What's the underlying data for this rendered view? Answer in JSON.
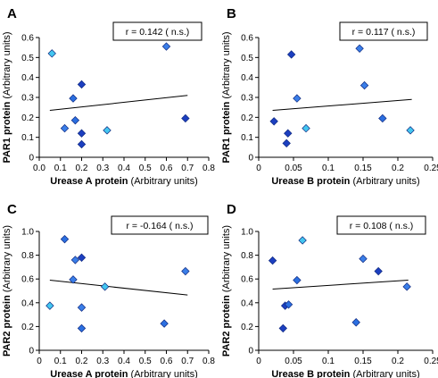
{
  "chart_data": [
    {
      "type": "scatter",
      "panel_label": "A",
      "annotation": "r = 0.142 ( n.s.)",
      "xlabel": "Urease A protein",
      "xlabel_suffix": "(Arbitrary units)",
      "ylabel": "PAR1 protein",
      "ylabel_suffix": "(Arbitrary units)",
      "xlim": [
        0,
        0.8
      ],
      "ylim": [
        0,
        0.6
      ],
      "xticks": [
        "0.0",
        "0.1",
        "0.2",
        "0.3",
        "0.4",
        "0.5",
        "0.6",
        "0.7",
        "0.8"
      ],
      "yticks": [
        "0",
        "0.1",
        "0.2",
        "0.3",
        "0.4",
        "0.5",
        "0.6"
      ],
      "points": [
        {
          "x": 0.06,
          "y": 0.52,
          "c": "#43c6f0"
        },
        {
          "x": 0.12,
          "y": 0.145,
          "c": "#3a7ee8"
        },
        {
          "x": 0.16,
          "y": 0.295,
          "c": "#2b6fe0"
        },
        {
          "x": 0.17,
          "y": 0.185,
          "c": "#2b6fe0"
        },
        {
          "x": 0.2,
          "y": 0.365,
          "c": "#1c3fc0"
        },
        {
          "x": 0.2,
          "y": 0.12,
          "c": "#1c3fc0"
        },
        {
          "x": 0.2,
          "y": 0.065,
          "c": "#1c3fc0"
        },
        {
          "x": 0.32,
          "y": 0.135,
          "c": "#43c6f0"
        },
        {
          "x": 0.6,
          "y": 0.555,
          "c": "#3a7ee8"
        },
        {
          "x": 0.69,
          "y": 0.195,
          "c": "#1c3fc0"
        }
      ],
      "trend": {
        "x": [
          0.05,
          0.7
        ],
        "y": [
          0.235,
          0.31
        ]
      }
    },
    {
      "type": "scatter",
      "panel_label": "B",
      "annotation": "r = 0.117 ( n.s.)",
      "xlabel": "Urease B protein",
      "xlabel_suffix": "(Arbitrary units)",
      "ylabel": "PAR1 protein",
      "ylabel_suffix": "(Arbitrary units)",
      "xlim": [
        0,
        0.25
      ],
      "ylim": [
        0,
        0.6
      ],
      "xticks": [
        "0",
        "0.05",
        "0.1",
        "0.15",
        "0.2",
        "0.25"
      ],
      "yticks": [
        "0",
        "0.1",
        "0.2",
        "0.3",
        "0.4",
        "0.5",
        "0.6"
      ],
      "points": [
        {
          "x": 0.022,
          "y": 0.18,
          "c": "#1c3fc0"
        },
        {
          "x": 0.04,
          "y": 0.07,
          "c": "#1c3fc0"
        },
        {
          "x": 0.042,
          "y": 0.12,
          "c": "#1c3fc0"
        },
        {
          "x": 0.047,
          "y": 0.515,
          "c": "#1c3fc0"
        },
        {
          "x": 0.055,
          "y": 0.295,
          "c": "#3a7ee8"
        },
        {
          "x": 0.068,
          "y": 0.145,
          "c": "#43c6f0"
        },
        {
          "x": 0.145,
          "y": 0.545,
          "c": "#3a7ee8"
        },
        {
          "x": 0.152,
          "y": 0.36,
          "c": "#3a7ee8"
        },
        {
          "x": 0.178,
          "y": 0.195,
          "c": "#2b6fe0"
        },
        {
          "x": 0.218,
          "y": 0.135,
          "c": "#43c6f0"
        }
      ],
      "trend": {
        "x": [
          0.02,
          0.22
        ],
        "y": [
          0.235,
          0.29
        ]
      }
    },
    {
      "type": "scatter",
      "panel_label": "C",
      "annotation": "r = -0.164 ( n.s.)",
      "xlabel": "Urease A protein",
      "xlabel_suffix": "(Arbitrary units)",
      "ylabel": "PAR2 protein",
      "ylabel_suffix": "(Arbitrary units)",
      "xlim": [
        0,
        0.8
      ],
      "ylim": [
        0,
        1.0
      ],
      "xticks": [
        "0",
        "0.1",
        "0.2",
        "0.3",
        "0.4",
        "0.5",
        "0.6",
        "0.7",
        "0.8"
      ],
      "yticks": [
        "0",
        "0.2",
        "0.4",
        "0.6",
        "0.8",
        "1.0"
      ],
      "points": [
        {
          "x": 0.05,
          "y": 0.375,
          "c": "#43c6f0"
        },
        {
          "x": 0.12,
          "y": 0.935,
          "c": "#2b6fe0"
        },
        {
          "x": 0.16,
          "y": 0.595,
          "c": "#3a7ee8"
        },
        {
          "x": 0.17,
          "y": 0.76,
          "c": "#3a7ee8"
        },
        {
          "x": 0.2,
          "y": 0.78,
          "c": "#1c3fc0"
        },
        {
          "x": 0.2,
          "y": 0.36,
          "c": "#3a7ee8"
        },
        {
          "x": 0.2,
          "y": 0.185,
          "c": "#2b6fe0"
        },
        {
          "x": 0.31,
          "y": 0.535,
          "c": "#43c6f0"
        },
        {
          "x": 0.59,
          "y": 0.225,
          "c": "#2b6fe0"
        },
        {
          "x": 0.69,
          "y": 0.665,
          "c": "#3a7ee8"
        }
      ],
      "trend": {
        "x": [
          0.05,
          0.7
        ],
        "y": [
          0.59,
          0.465
        ]
      }
    },
    {
      "type": "scatter",
      "panel_label": "D",
      "annotation": "r = 0.108 ( n.s.)",
      "xlabel": "Urease B protein",
      "xlabel_suffix": "(Arbitrary units)",
      "ylabel": "PAR2 protein",
      "ylabel_suffix": "(Arbitrary units)",
      "xlim": [
        0,
        0.25
      ],
      "ylim": [
        0,
        1.0
      ],
      "xticks": [
        "0",
        "0.05",
        "0.1",
        "0.15",
        "0.2",
        "0.25"
      ],
      "yticks": [
        "0",
        "0.2",
        "0.4",
        "0.6",
        "0.8",
        "1.0"
      ],
      "points": [
        {
          "x": 0.02,
          "y": 0.755,
          "c": "#1c3fc0"
        },
        {
          "x": 0.035,
          "y": 0.185,
          "c": "#1c3fc0"
        },
        {
          "x": 0.038,
          "y": 0.375,
          "c": "#1c3fc0"
        },
        {
          "x": 0.043,
          "y": 0.385,
          "c": "#2b6fe0"
        },
        {
          "x": 0.055,
          "y": 0.59,
          "c": "#2b6fe0"
        },
        {
          "x": 0.063,
          "y": 0.925,
          "c": "#43c6f0"
        },
        {
          "x": 0.14,
          "y": 0.235,
          "c": "#2b6fe0"
        },
        {
          "x": 0.15,
          "y": 0.77,
          "c": "#3a7ee8"
        },
        {
          "x": 0.172,
          "y": 0.665,
          "c": "#1c3fc0"
        },
        {
          "x": 0.213,
          "y": 0.535,
          "c": "#3a7ee8"
        }
      ],
      "trend": {
        "x": [
          0.02,
          0.215
        ],
        "y": [
          0.515,
          0.59
        ]
      }
    }
  ]
}
